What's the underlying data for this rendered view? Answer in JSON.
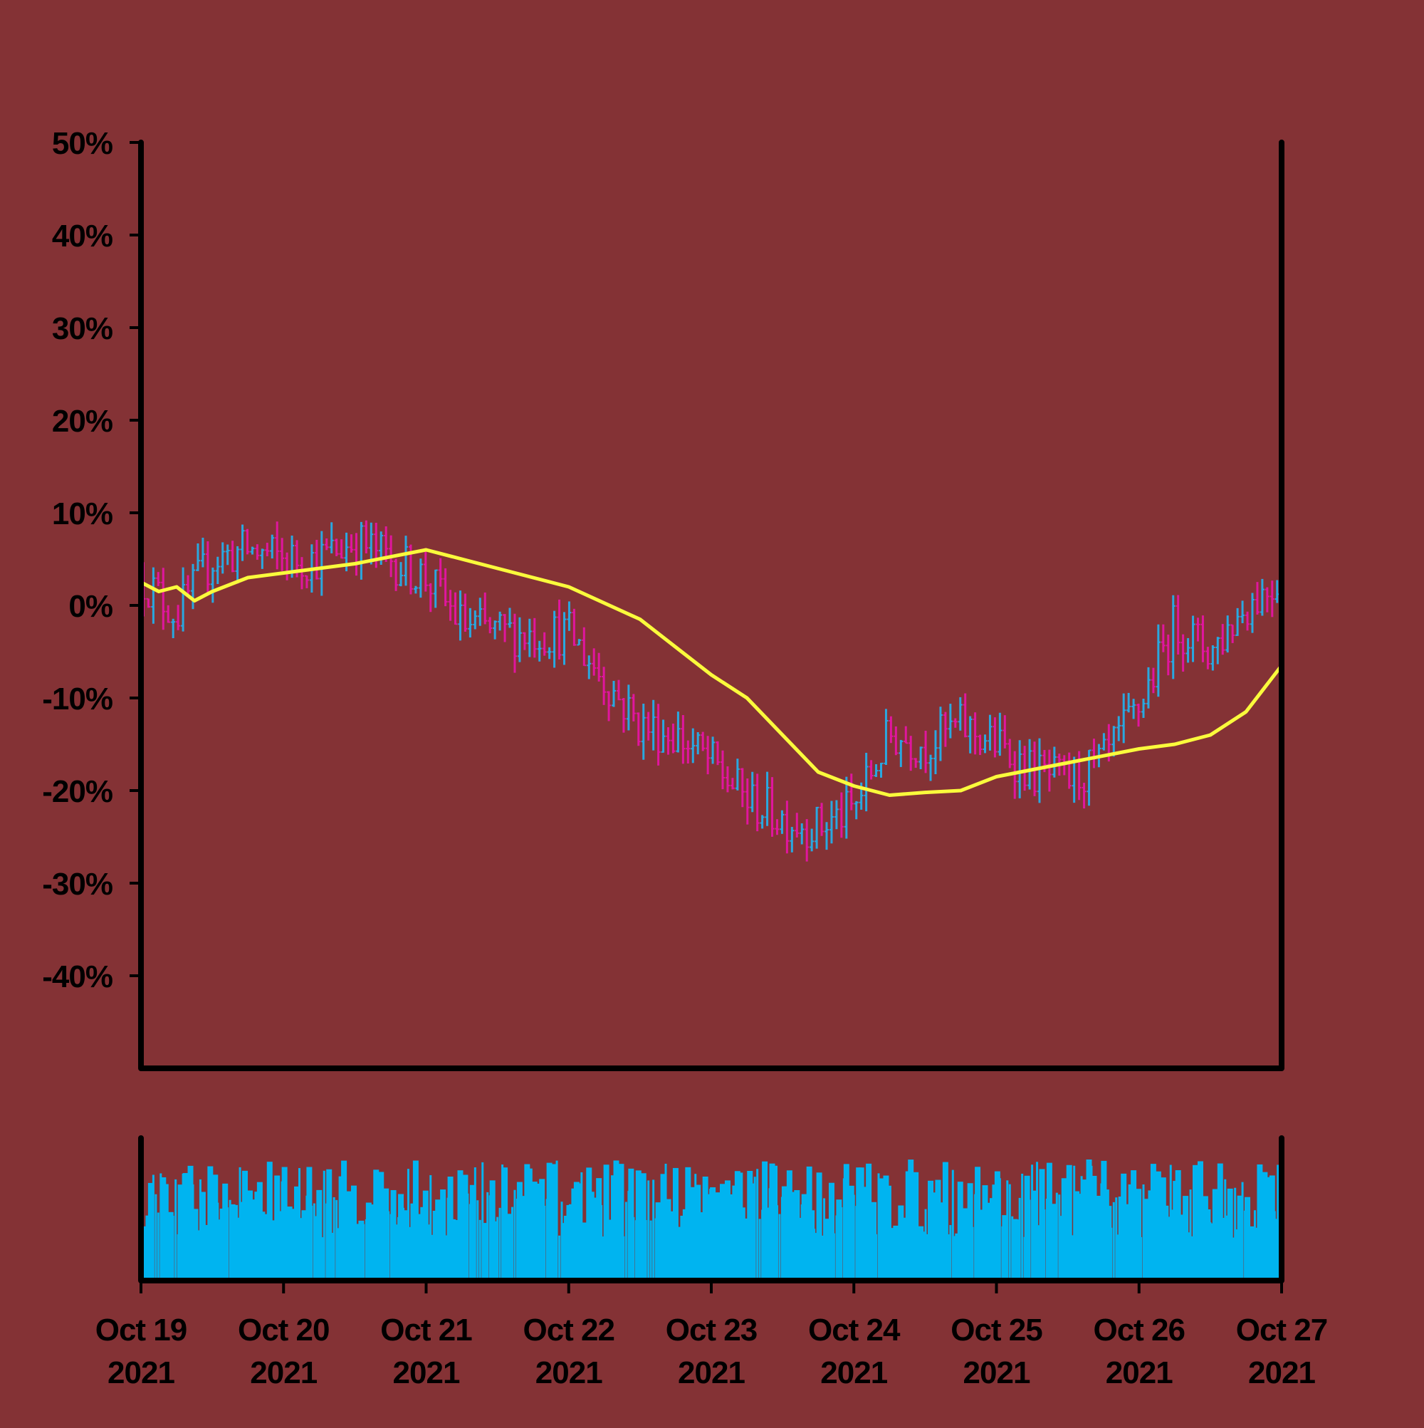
{
  "chart_data": {
    "type": "ohlc",
    "title": "",
    "xlabel": "",
    "ylabel": "",
    "colors": {
      "background": "#843235",
      "up": "#29a8e0",
      "down": "#e0169e",
      "moving_average": "#fafa3c",
      "volume": "#00b4f0",
      "axis": "#000000"
    },
    "price_panel": {
      "ylim": [
        -0.5,
        0.5
      ],
      "y_ticks": [
        0.5,
        0.4,
        0.3,
        0.2,
        0.1,
        0.0,
        -0.1,
        -0.2,
        -0.3,
        -0.4
      ],
      "y_tick_labels": [
        "50%",
        "40%",
        "30%",
        "20%",
        "10%",
        "0%",
        "-10%",
        "-20%",
        "-30%",
        "-40%"
      ]
    },
    "x_axis": {
      "xlim": [
        "2021-10-19T00:00",
        "2021-10-27T00:00"
      ],
      "tick_dates": [
        "2021-10-19",
        "2021-10-20",
        "2021-10-21",
        "2021-10-22",
        "2021-10-23",
        "2021-10-24",
        "2021-10-25",
        "2021-10-26",
        "2021-10-27"
      ],
      "tick_labels": [
        [
          "Oct 19",
          "2021"
        ],
        [
          "Oct 20",
          "2021"
        ],
        [
          "Oct 21",
          "2021"
        ],
        [
          "Oct 22",
          "2021"
        ],
        [
          "Oct 23",
          "2021"
        ],
        [
          "Oct 24",
          "2021"
        ],
        [
          "Oct 25",
          "2021"
        ],
        [
          "Oct 26",
          "2021"
        ],
        [
          "Oct 27",
          "2021"
        ]
      ]
    },
    "close_anchors": {
      "dates": [
        "2021-10-19T00:00",
        "2021-10-19T06:00",
        "2021-10-19T12:00",
        "2021-10-19T18:00",
        "2021-10-20T00:00",
        "2021-10-20T06:00",
        "2021-10-20T12:00",
        "2021-10-20T18:00",
        "2021-10-21T00:00",
        "2021-10-21T06:00",
        "2021-10-21T12:00",
        "2021-10-21T18:00",
        "2021-10-22T00:00",
        "2021-10-22T06:00",
        "2021-10-22T12:00",
        "2021-10-22T18:00",
        "2021-10-23T00:00",
        "2021-10-23T06:00",
        "2021-10-23T12:00",
        "2021-10-23T18:00",
        "2021-10-24T00:00",
        "2021-10-24T06:00",
        "2021-10-24T12:00",
        "2021-10-24T18:00",
        "2021-10-25T00:00",
        "2021-10-25T06:00",
        "2021-10-25T12:00",
        "2021-10-25T18:00",
        "2021-10-26T00:00",
        "2021-10-26T06:00",
        "2021-10-26T12:00",
        "2021-10-26T18:00",
        "2021-10-27T00:00"
      ],
      "values": [
        0.03,
        -0.01,
        0.05,
        0.06,
        0.05,
        0.05,
        0.07,
        0.05,
        0.03,
        -0.02,
        -0.03,
        -0.03,
        -0.03,
        -0.08,
        -0.13,
        -0.14,
        -0.17,
        -0.21,
        -0.23,
        -0.24,
        -0.22,
        -0.14,
        -0.15,
        -0.13,
        -0.15,
        -0.18,
        -0.19,
        -0.17,
        -0.11,
        -0.02,
        -0.05,
        0.0,
        0.03
      ]
    },
    "moving_average": {
      "dates": [
        "2021-10-19T00:00",
        "2021-10-19T03:00",
        "2021-10-19T06:00",
        "2021-10-19T09:00",
        "2021-10-19T12:00",
        "2021-10-19T18:00",
        "2021-10-20T00:00",
        "2021-10-20T12:00",
        "2021-10-21T00:00",
        "2021-10-21T06:00",
        "2021-10-21T12:00",
        "2021-10-21T18:00",
        "2021-10-22T00:00",
        "2021-10-22T12:00",
        "2021-10-22T18:00",
        "2021-10-23T00:00",
        "2021-10-23T06:00",
        "2021-10-23T12:00",
        "2021-10-23T18:00",
        "2021-10-24T00:00",
        "2021-10-24T06:00",
        "2021-10-24T12:00",
        "2021-10-24T18:00",
        "2021-10-25T00:00",
        "2021-10-25T12:00",
        "2021-10-26T00:00",
        "2021-10-26T06:00",
        "2021-10-26T12:00",
        "2021-10-26T18:00",
        "2021-10-27T00:00"
      ],
      "values": [
        0.025,
        0.015,
        0.02,
        0.005,
        0.015,
        0.03,
        0.035,
        0.045,
        0.06,
        0.05,
        0.04,
        0.03,
        0.02,
        -0.015,
        -0.045,
        -0.075,
        -0.1,
        -0.14,
        -0.18,
        -0.195,
        -0.205,
        -0.202,
        -0.2,
        -0.185,
        -0.17,
        -0.155,
        -0.15,
        -0.14,
        -0.115,
        -0.065
      ]
    },
    "volume_panel": {
      "y_ticks": [],
      "relative_levels": [
        0.05,
        0.3,
        0.5,
        0.85,
        1.0
      ]
    }
  }
}
